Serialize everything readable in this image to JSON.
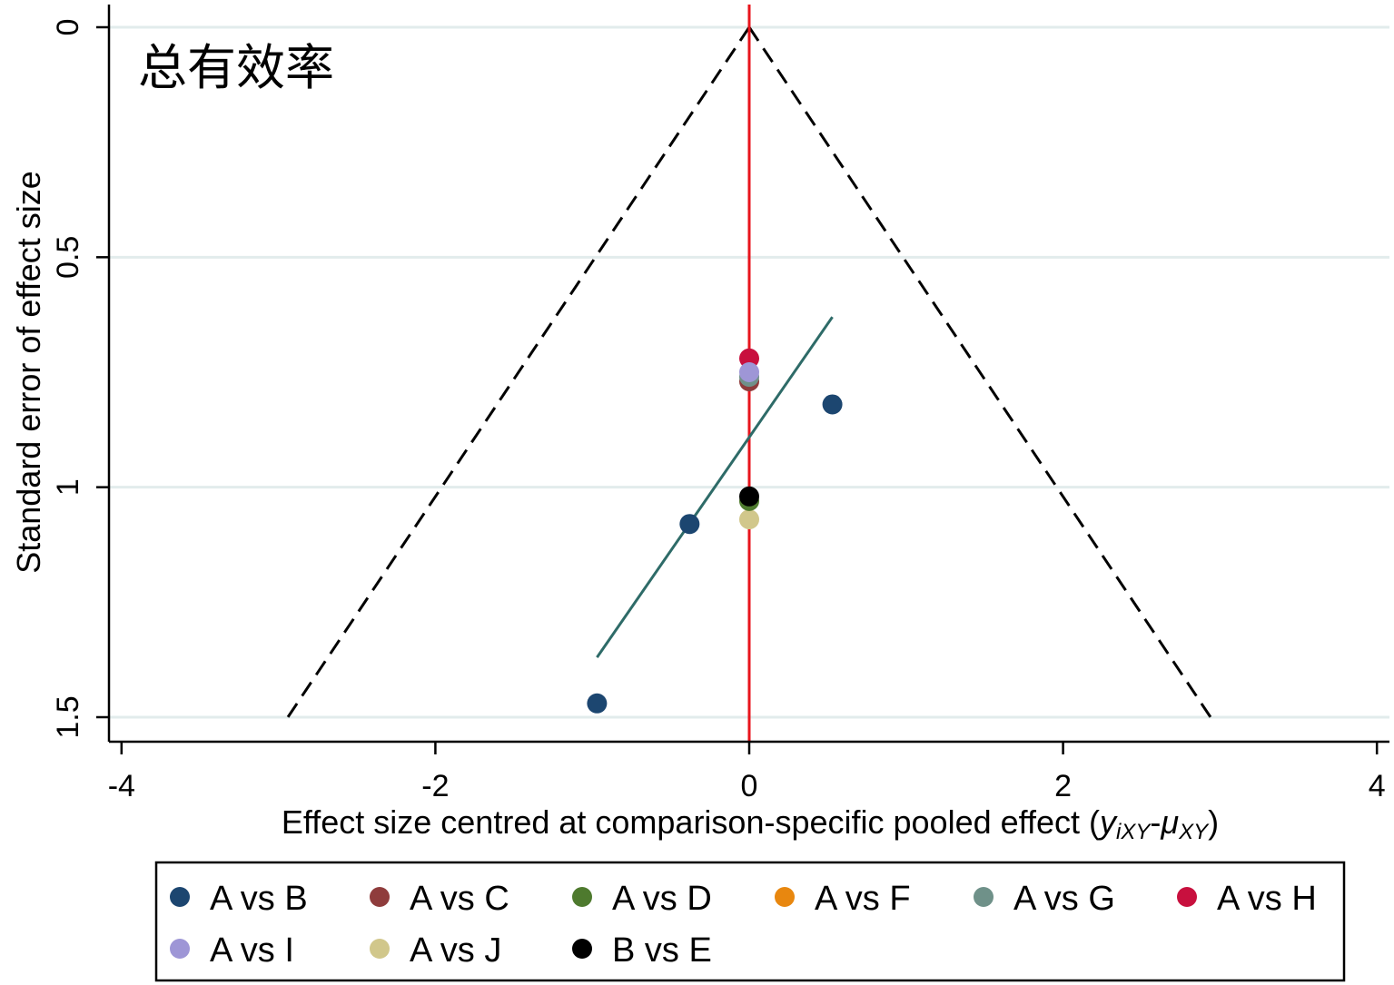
{
  "chart_data": {
    "type": "scatter",
    "title": "总有效率",
    "xlabel": {
      "prefix": "Effect size centred at comparison-specific pooled effect (",
      "y": "y",
      "y_sub": "iXY",
      "sep": "-",
      "mu": "μ",
      "mu_sub": "XY",
      "suffix": ")"
    },
    "ylabel": "Standard error of effect size",
    "xlim": [
      -4.08,
      4.08
    ],
    "ylim": [
      0,
      1.5
    ],
    "y_reversed": true,
    "x_ticks": [
      "-4",
      "-2",
      "0",
      "2",
      "4"
    ],
    "x_tick_values": [
      -4,
      -2,
      0,
      2,
      4
    ],
    "y_ticks": [
      "0",
      "0.5",
      "1",
      "1.5"
    ],
    "y_tick_values": [
      0,
      0.5,
      1,
      1.5
    ],
    "grid": true,
    "reference_line": {
      "x": 0,
      "color": "#e8141c"
    },
    "funnel": {
      "apex": [
        0,
        0
      ],
      "max_se": 1.5,
      "z": 1.96,
      "color": "#000000"
    },
    "fit_line": {
      "x": [
        -0.97,
        0.53
      ],
      "y": [
        1.37,
        0.63
      ],
      "color": "#2e6b68"
    },
    "legend_position": "bottom",
    "series": [
      {
        "name": "A vs B",
        "color": "#1c4670",
        "points": [
          [
            0.53,
            0.82
          ],
          [
            -0.38,
            1.08
          ],
          [
            -0.97,
            1.47
          ]
        ]
      },
      {
        "name": "A vs C",
        "color": "#8f3c3c",
        "points": [
          [
            0.0,
            0.77
          ]
        ]
      },
      {
        "name": "A vs D",
        "color": "#4e7a2e",
        "points": [
          [
            0.0,
            1.03
          ]
        ]
      },
      {
        "name": "A vs F",
        "color": "#e8870f",
        "points": []
      },
      {
        "name": "A vs G",
        "color": "#6f9189",
        "points": [
          [
            0.0,
            0.76
          ]
        ]
      },
      {
        "name": "A vs H",
        "color": "#c8103e",
        "points": [
          [
            0.0,
            0.72
          ]
        ]
      },
      {
        "name": "A vs I",
        "color": "#9e96d6",
        "points": [
          [
            0.0,
            0.75
          ]
        ]
      },
      {
        "name": "A vs J",
        "color": "#d1c78b",
        "points": [
          [
            0.0,
            1.07
          ]
        ]
      },
      {
        "name": "B vs E",
        "color": "#000000",
        "points": [
          [
            0.0,
            1.02
          ]
        ]
      }
    ]
  }
}
